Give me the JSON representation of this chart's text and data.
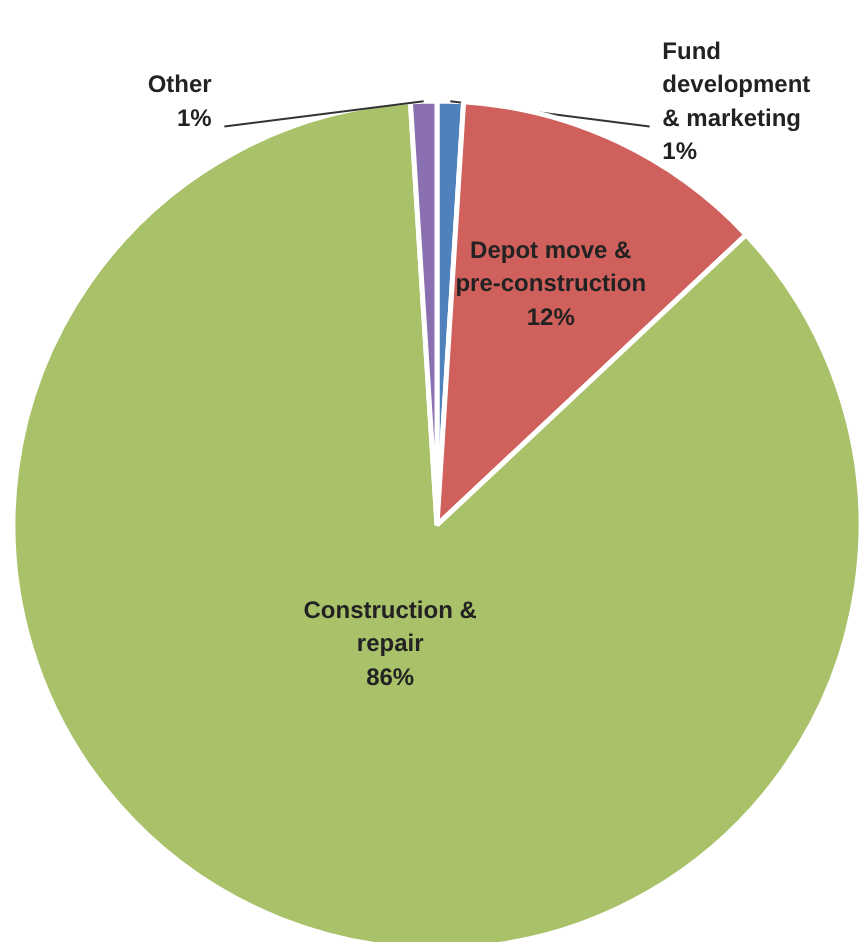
{
  "chart_data": {
    "type": "pie",
    "categories": [
      "Fund development & marketing",
      "Depot move & pre-construction",
      "Construction & repair",
      "Other"
    ],
    "values": [
      1,
      12,
      86,
      1
    ],
    "colors": [
      "#4f81bd",
      "#d0605c",
      "#a9c26a",
      "#8a70b0"
    ],
    "value_labels": [
      "1%",
      "12%",
      "86%",
      "1%"
    ]
  }
}
